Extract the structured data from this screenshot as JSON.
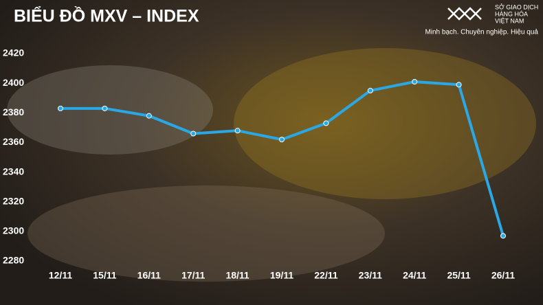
{
  "chart_data": {
    "type": "line",
    "title": "BIỂU ĐỒ MXV – INDEX",
    "categories": [
      "12/11",
      "15/11",
      "16/11",
      "17/11",
      "18/11",
      "19/11",
      "22/11",
      "23/11",
      "24/11",
      "25/11",
      "26/11"
    ],
    "series": [
      {
        "name": "MXV-Index",
        "color": "#2aa8e6",
        "values": [
          2383,
          2383,
          2378,
          2366,
          2368,
          2362,
          2373,
          2395,
          2401,
          2399,
          2297
        ]
      }
    ],
    "ylim": [
      2280,
      2420
    ],
    "yticks": [
      2280,
      2300,
      2320,
      2340,
      2360,
      2380,
      2400,
      2420
    ],
    "grid": false
  },
  "logo": {
    "lines": [
      "SỞ GIAO DỊCH",
      "HÀNG HÓA",
      "VIỆT NAM"
    ],
    "tagline": "Minh bạch. Chuyên nghiệp. Hiệu quả"
  }
}
